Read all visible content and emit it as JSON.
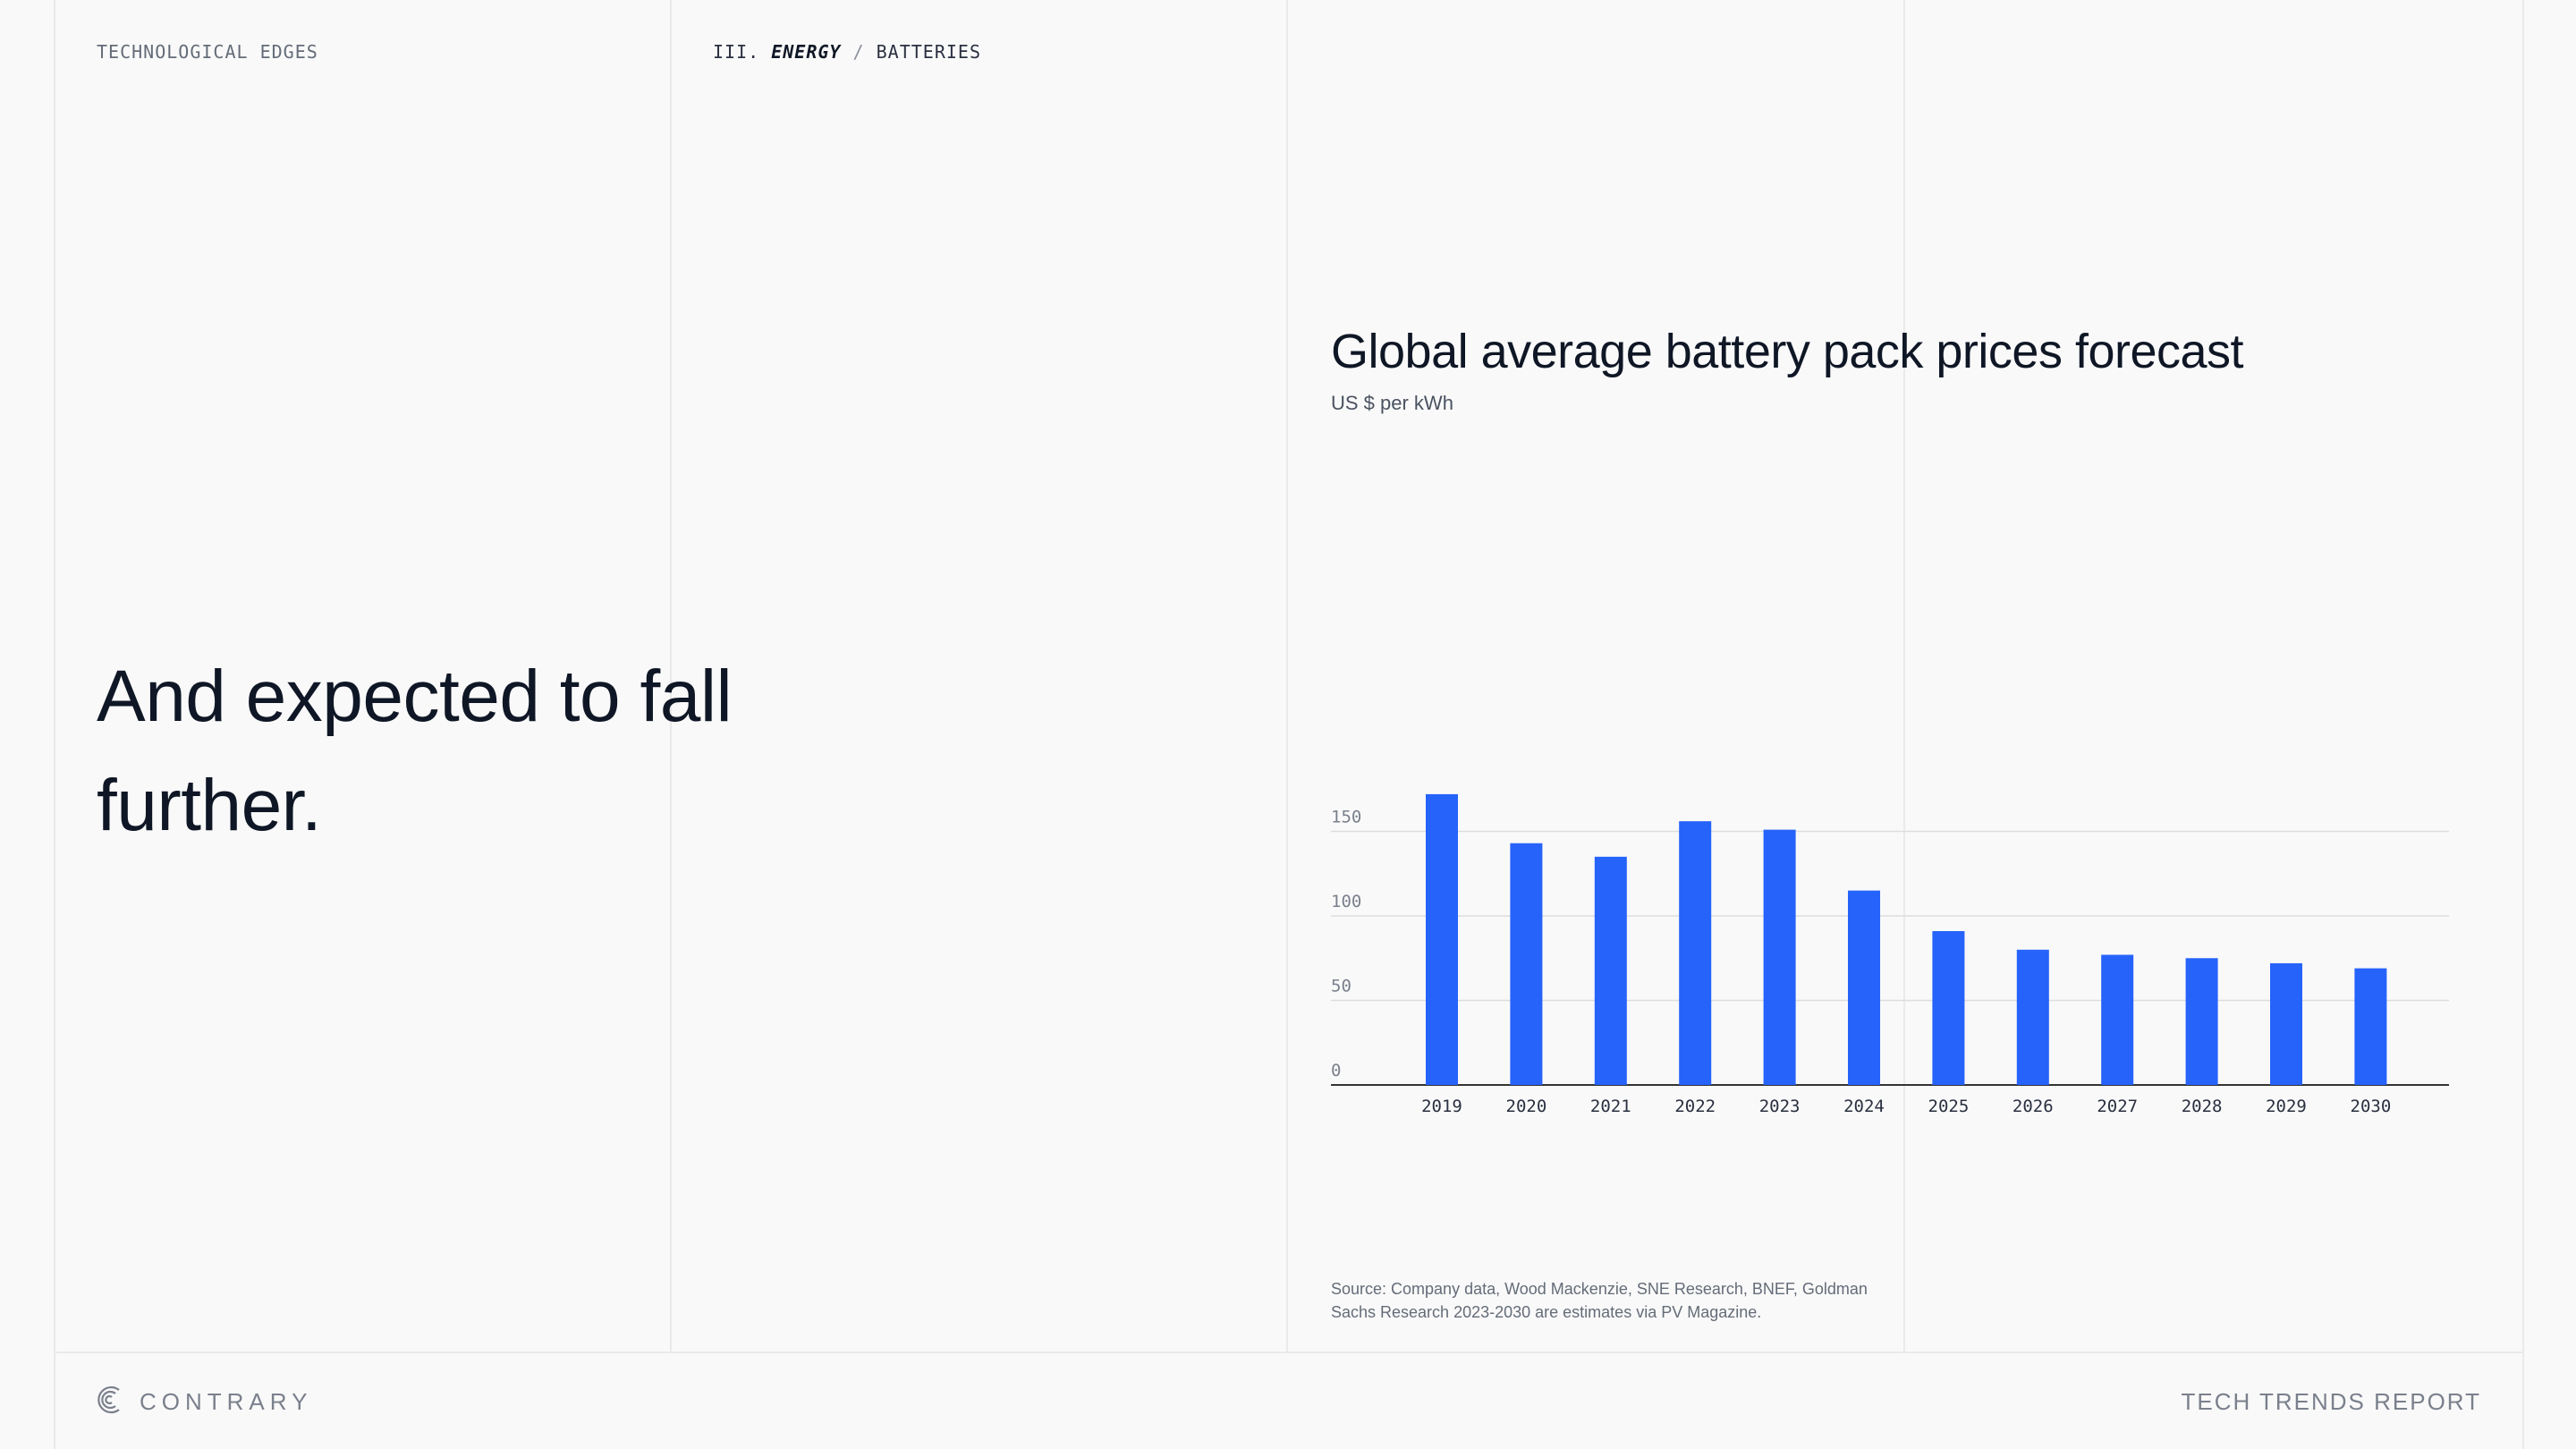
{
  "header": {
    "section_label": "TECHNOLOGICAL EDGES",
    "breadcrumb_number": "III.",
    "breadcrumb_section": "ENERGY",
    "breadcrumb_separator": "/",
    "breadcrumb_topic": "BATTERIES"
  },
  "headline": {
    "line1": "And expected to fall",
    "line2": "further."
  },
  "chart": {
    "title": "Global average battery pack prices forecast",
    "subtitle": "US $ per kWh",
    "source": "Source: Company data, Wood Mackenzie, SNE Research, BNEF, Goldman Sachs Research 2023-2030 are estimates via PV Magazine."
  },
  "chart_data": {
    "type": "bar",
    "title": "Global average battery pack prices forecast",
    "subtitle": "US $ per kWh",
    "xlabel": "",
    "ylabel": "",
    "categories": [
      "2019",
      "2020",
      "2021",
      "2022",
      "2023",
      "2024",
      "2025",
      "2026",
      "2027",
      "2028",
      "2029",
      "2030"
    ],
    "values": [
      172,
      143,
      135,
      156,
      151,
      115,
      91,
      80,
      77,
      75,
      72,
      69
    ],
    "yticks": [
      0,
      50,
      100,
      150
    ],
    "ylim": [
      0,
      175
    ],
    "grid": "horizontal",
    "legend": "none",
    "bar_color": "#2563fa",
    "grid_color": "#dddddd",
    "axis_color": "#333333"
  },
  "footer": {
    "brand": "CONTRARY",
    "brand_icon": "contrary-logo-icon",
    "report_name": "TECH TRENDS REPORT"
  },
  "colors": {
    "background": "#f9f9f9",
    "text": "#0f1726",
    "muted": "#646c78",
    "accent": "#2563fa"
  }
}
